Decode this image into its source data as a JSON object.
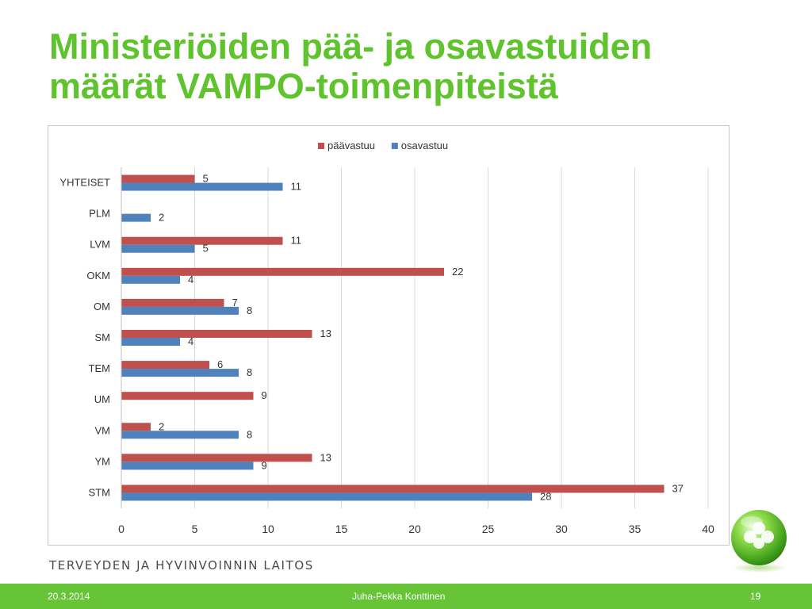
{
  "slide": {
    "title_line1": "Ministeriöiden pää- ja osavastuiden",
    "title_line2": "määrät VAMPO-toimenpiteistä",
    "organization": "TERVEYDEN JA HYVINVOINNIN LAITOS",
    "footer": {
      "date": "20.3.2014",
      "author": "Juha-Pekka Konttinen",
      "page_number": "19"
    },
    "colors": {
      "accent": "#5fc32e",
      "footer": "#67c437"
    }
  },
  "chart_data": {
    "type": "bar",
    "orientation": "horizontal",
    "title": "",
    "xlabel": "",
    "ylabel": "",
    "categories": [
      "YHTEISET",
      "PLM",
      "LVM",
      "OKM",
      "OM",
      "SM",
      "TEM",
      "UM",
      "VM",
      "YM",
      "STM"
    ],
    "series": [
      {
        "name": "päävastuu",
        "color": "#c0504d",
        "values": [
          5,
          null,
          11,
          22,
          7,
          13,
          6,
          9,
          2,
          13,
          37
        ]
      },
      {
        "name": "osavastuu",
        "color": "#4f81bd",
        "values": [
          11,
          2,
          5,
          4,
          8,
          4,
          8,
          null,
          8,
          9,
          28
        ]
      }
    ],
    "xlim": [
      0,
      40
    ],
    "xticks": [
      0,
      5,
      10,
      15,
      20,
      25,
      30,
      35,
      40
    ],
    "grid": true,
    "data_labels": true,
    "legend_position": "top"
  }
}
